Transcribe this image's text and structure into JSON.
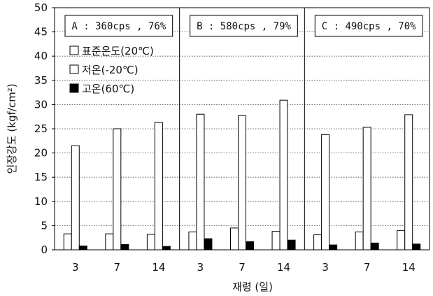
{
  "chart_data": {
    "type": "bar",
    "ylabel": "인장강도 (kgf/cm²)",
    "xlabel": "재령 (일)",
    "ylim": [
      0,
      50
    ],
    "yticks": [
      "0",
      "5",
      "10",
      "15",
      "20",
      "25",
      "30",
      "35",
      "40",
      "45",
      "50"
    ],
    "grid": "horizontal dotted",
    "groups": [
      {
        "annotation": "A : 360cps , 76%",
        "categories": [
          "3",
          "7",
          "14"
        ]
      },
      {
        "annotation": "B : 580cps , 79%",
        "categories": [
          "3",
          "7",
          "14"
        ]
      },
      {
        "annotation": "C : 490cps , 70%",
        "categories": [
          "3",
          "7",
          "14"
        ]
      }
    ],
    "legend_position": "upper-left",
    "series": [
      {
        "name": "표준온도(20℃)",
        "fill": "#ffffff",
        "values": [
          3.3,
          3.3,
          3.2,
          3.7,
          4.5,
          3.8,
          3.1,
          3.7,
          4.0
        ]
      },
      {
        "name": "저온(-20℃)",
        "fill": "#ffffff",
        "values": [
          21.5,
          25.0,
          26.3,
          28.0,
          27.7,
          30.9,
          23.8,
          25.3,
          27.9
        ]
      },
      {
        "name": "고온(60℃)",
        "fill": "#000000",
        "values": [
          0.8,
          1.1,
          0.7,
          2.3,
          1.7,
          2.0,
          1.0,
          1.4,
          1.2
        ]
      }
    ]
  }
}
